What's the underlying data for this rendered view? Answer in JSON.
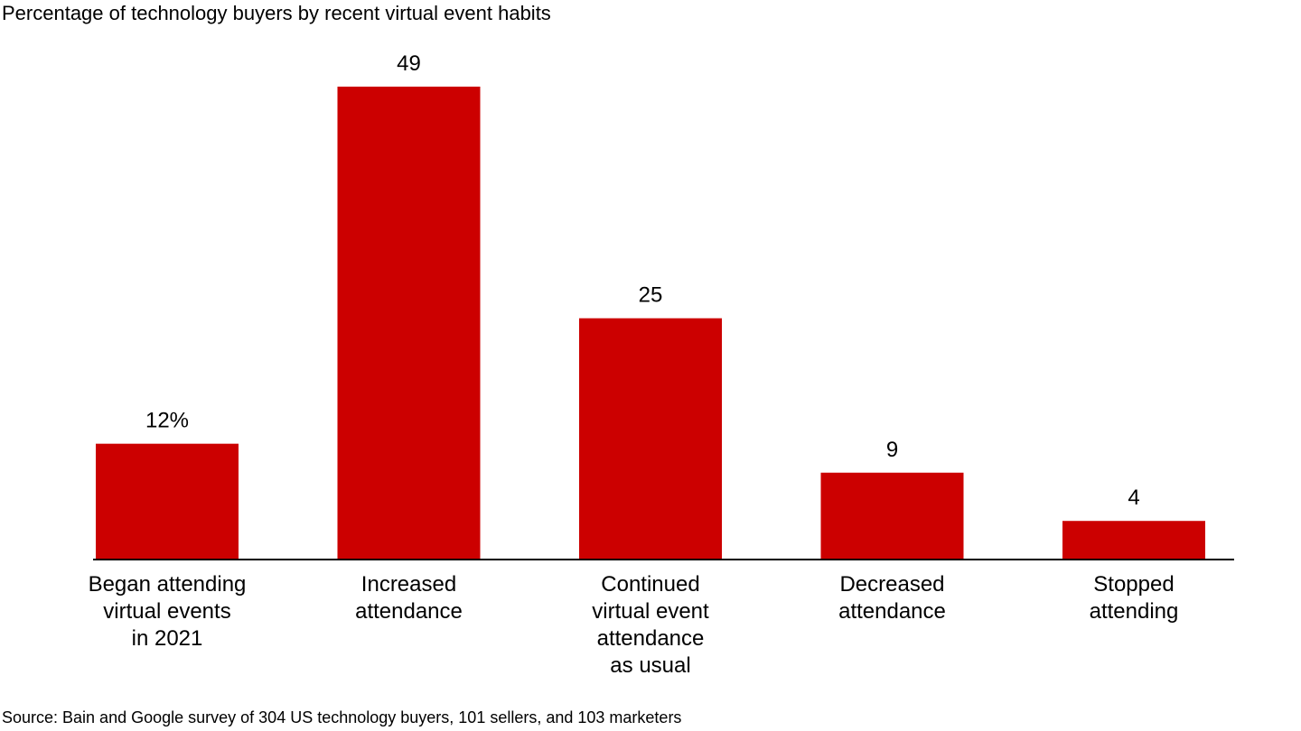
{
  "chart_data": {
    "type": "bar",
    "title": "Percentage of technology buyers by recent virtual event habits",
    "categories": [
      "Began attending virtual events in 2021",
      "Increased attendance",
      "Continued virtual event attendance as usual",
      "Decreased attendance",
      "Stopped attending"
    ],
    "category_lines": [
      [
        "Began attending",
        "virtual events",
        "in 2021"
      ],
      [
        "Increased",
        "attendance"
      ],
      [
        "Continued",
        "virtual event",
        "attendance",
        "as usual"
      ],
      [
        "Decreased",
        "attendance"
      ],
      [
        "Stopped",
        "attending"
      ]
    ],
    "values": [
      12,
      49,
      25,
      9,
      4
    ],
    "value_labels": [
      "12%",
      "49",
      "25",
      "9",
      "4"
    ],
    "xlabel": "",
    "ylabel": "",
    "ylim": [
      0,
      49
    ],
    "grid": false,
    "bar_color": "#cc0000",
    "axis_color": "#000000"
  },
  "source": "Source: Bain and Google survey of 304 US technology buyers, 101 sellers, and 103 marketers"
}
